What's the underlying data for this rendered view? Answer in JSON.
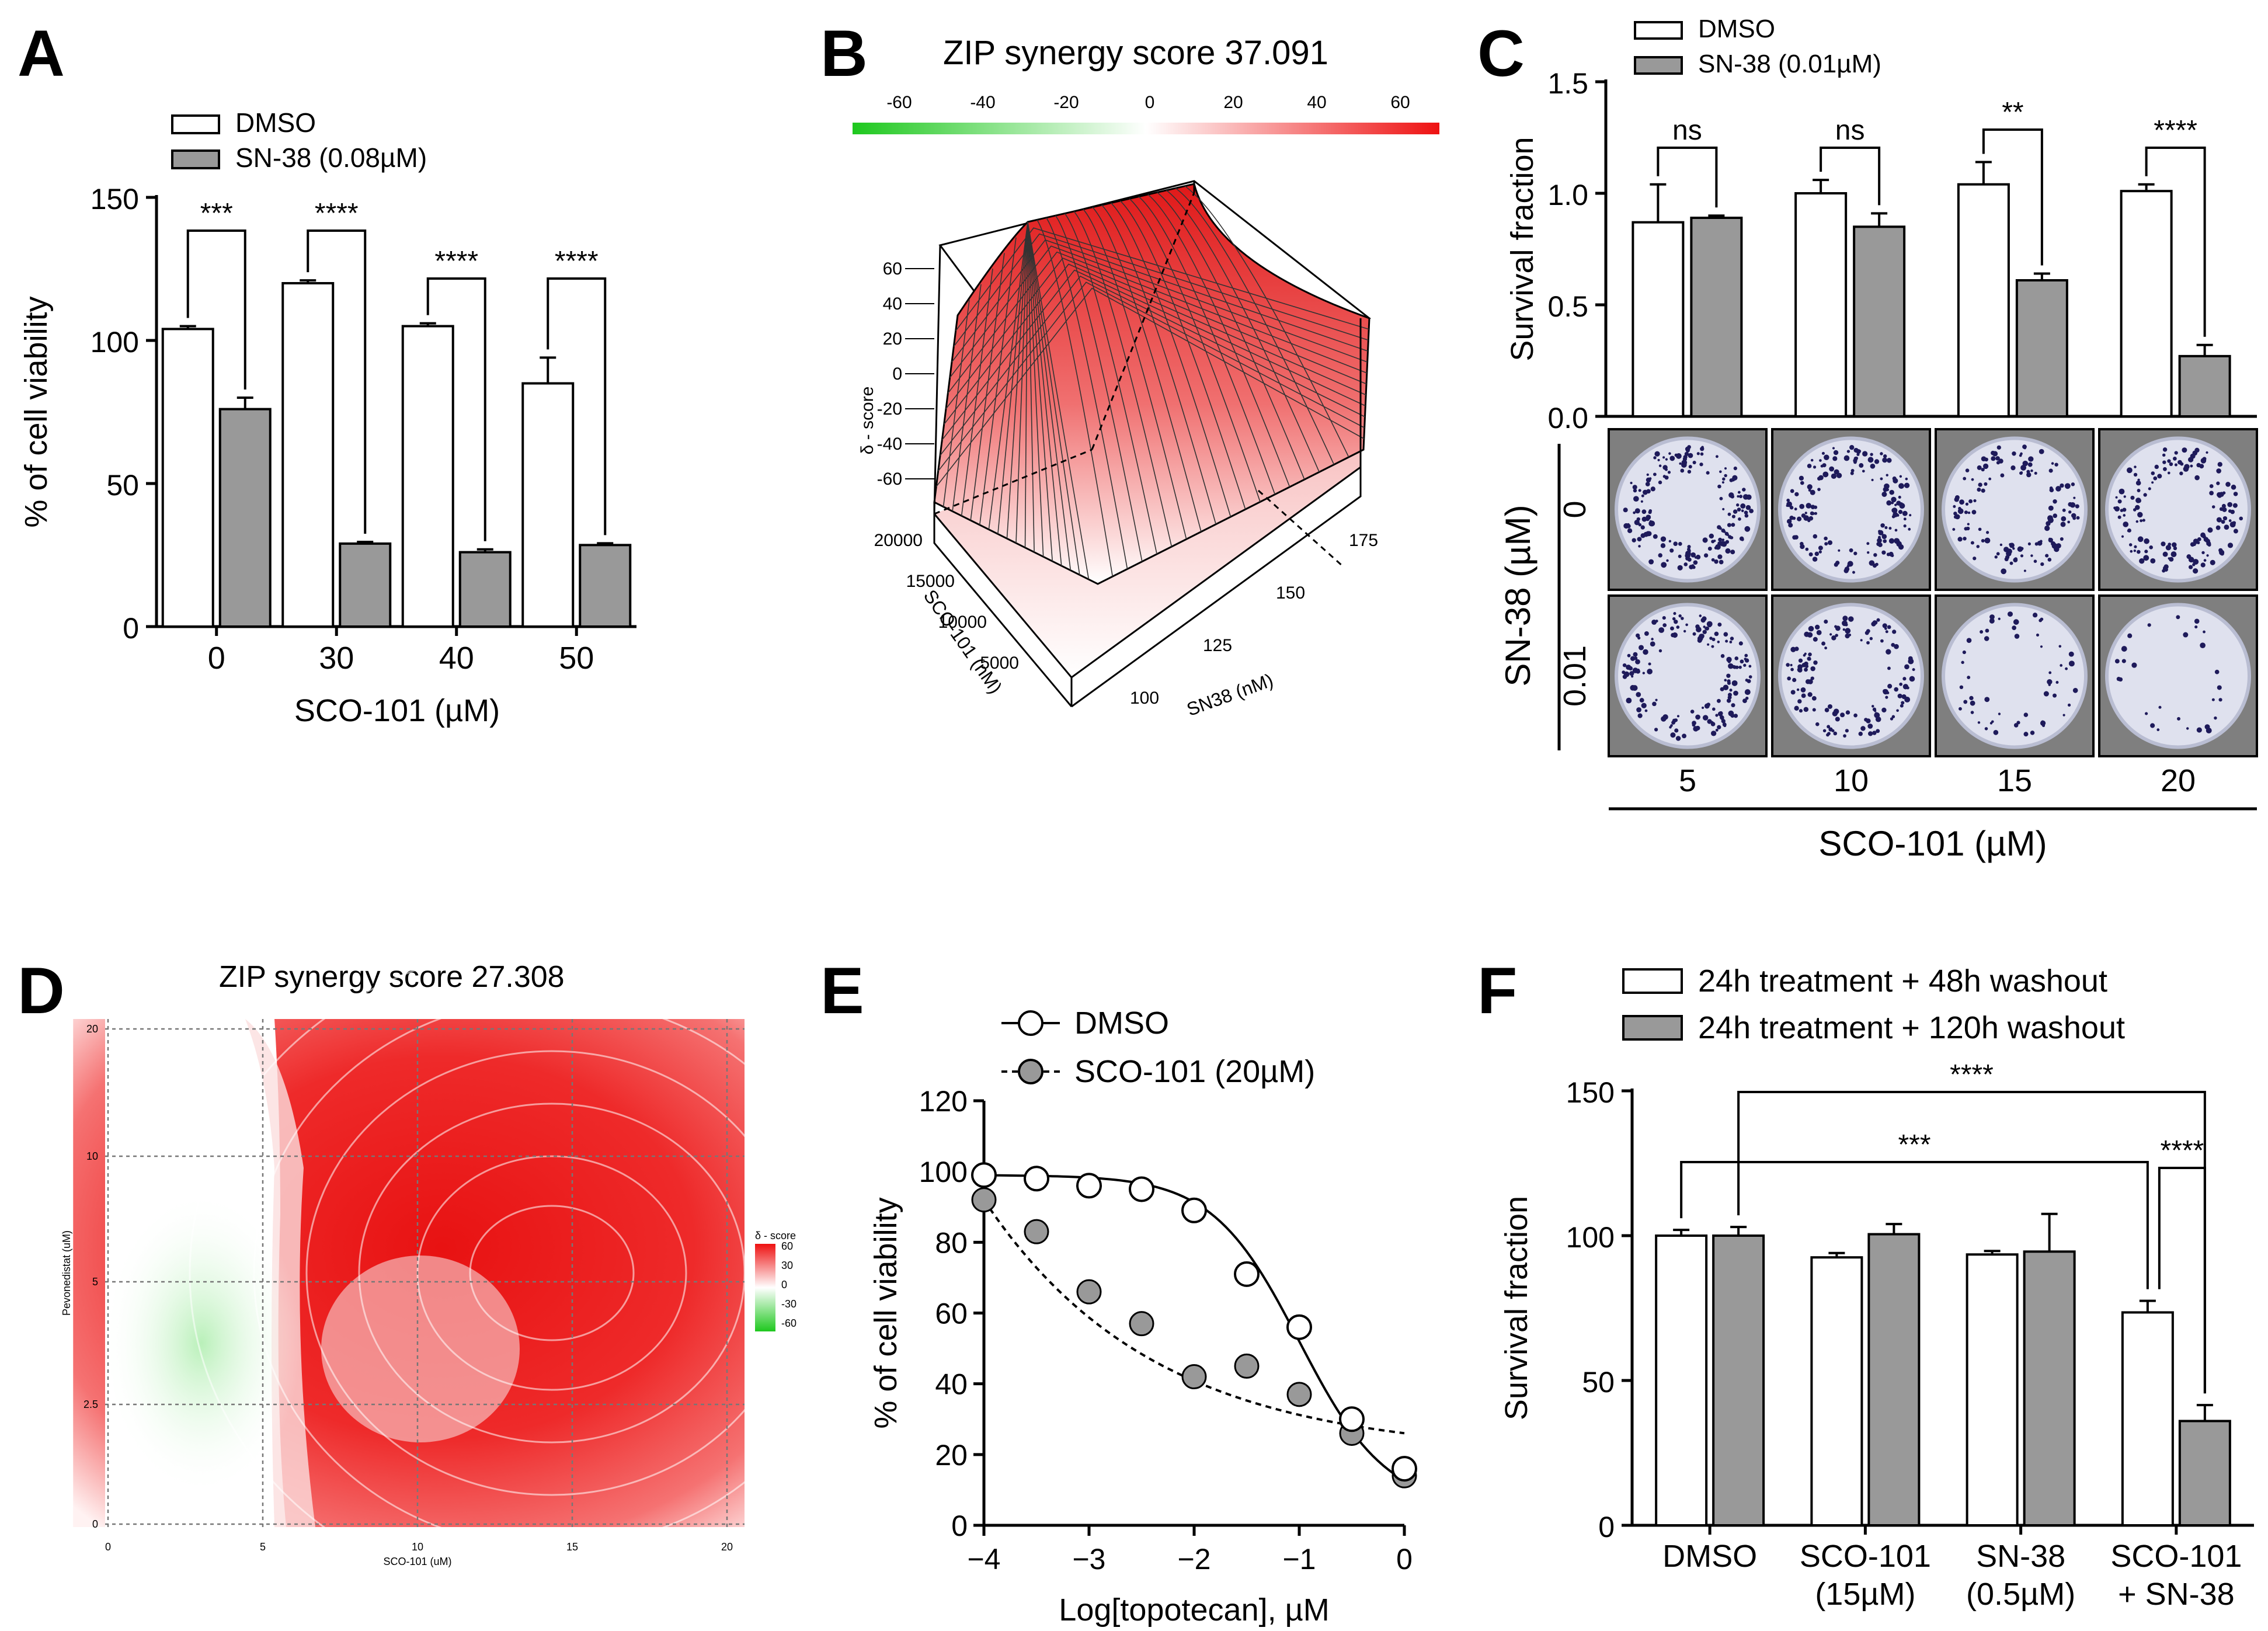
{
  "panels": {
    "A": {
      "letter": "A"
    },
    "B": {
      "letter": "B",
      "title": "ZIP synergy score 37.091"
    },
    "C": {
      "letter": "C"
    },
    "D": {
      "letter": "D",
      "title": "ZIP synergy score 27.308"
    },
    "E": {
      "letter": "E"
    },
    "F": {
      "letter": "F"
    }
  },
  "chart_data": [
    {
      "id": "A",
      "type": "bar",
      "categories": [
        "0",
        "30",
        "40",
        "50"
      ],
      "series": [
        {
          "name": "DMSO",
          "values": [
            104,
            120,
            105,
            85
          ],
          "errors": [
            1,
            1,
            1,
            9
          ],
          "color": "#ffffff"
        },
        {
          "name": "SN-38 (0.08µM)",
          "values": [
            76,
            29,
            26,
            28.5
          ],
          "errors": [
            4,
            0.6,
            1,
            0.6
          ],
          "color": "#999999"
        }
      ],
      "significance": [
        "***",
        "****",
        "****",
        "****"
      ],
      "xlabel": "SCO-101 (µM)",
      "ylabel": "% of cell viability",
      "ylim": [
        0,
        150
      ],
      "yticks": [
        "0",
        "50",
        "100",
        "150"
      ]
    },
    {
      "id": "B",
      "type": "surface",
      "title": "ZIP synergy score 37.091",
      "colorbar_ticks": [
        "-60",
        "-40",
        "-20",
        "0",
        "20",
        "40",
        "60"
      ],
      "zlabel": "δ - score",
      "zticks": [
        "60",
        "40",
        "20",
        "0",
        "-20",
        "-40",
        "-60"
      ],
      "x1label": "SCO-101 (nM)",
      "x1ticks": [
        "20000",
        "15000",
        "10000",
        "5000"
      ],
      "x2label": "SN38 (nM)",
      "x2ticks": [
        "100",
        "125",
        "150",
        "175"
      ]
    },
    {
      "id": "C",
      "type": "bar",
      "categories": [
        "5",
        "10",
        "15",
        "20"
      ],
      "series": [
        {
          "name": "DMSO",
          "values": [
            0.87,
            1.0,
            1.04,
            1.01
          ],
          "errors": [
            0.17,
            0.06,
            0.1,
            0.03
          ],
          "color": "#ffffff"
        },
        {
          "name": "SN-38 (0.01µM)",
          "values": [
            0.89,
            0.85,
            0.61,
            0.27
          ],
          "errors": [
            0.01,
            0.06,
            0.03,
            0.05
          ],
          "color": "#999999"
        }
      ],
      "significance": [
        "ns",
        "ns",
        "**",
        "****"
      ],
      "ylabel": "Survival fraction",
      "ylim": [
        0,
        1.5
      ],
      "yticks": [
        "0.0",
        "0.5",
        "1.0",
        "1.5"
      ],
      "image_rows": [
        "0",
        "0.01"
      ],
      "image_row_label": "SN-38 (µM)",
      "xlabel": "SCO-101 (µM)"
    },
    {
      "id": "D",
      "type": "heatmap",
      "title": "ZIP synergy score 27.308",
      "xlabel": "SCO-101 (uM)",
      "ylabel": "Pevonedistat (uM)",
      "xticks": [
        "0",
        "5",
        "10",
        "15",
        "20"
      ],
      "yticks": [
        "0",
        "2.5",
        "5",
        "10",
        "20"
      ],
      "legend_title": "δ - score",
      "legend_ticks": [
        "60",
        "30",
        "0",
        "-30",
        "-60"
      ]
    },
    {
      "id": "E",
      "type": "scatter",
      "series": [
        {
          "name": "DMSO",
          "x": [
            -4,
            -3.5,
            -3,
            -2.5,
            -2,
            -1.5,
            -1,
            -0.5,
            0
          ],
          "y": [
            99,
            98,
            96,
            95,
            89,
            71,
            56,
            30,
            16
          ],
          "marker": "open-circle",
          "line": "solid"
        },
        {
          "name": "SCO-101 (20µM)",
          "x": [
            -4,
            -3.5,
            -3,
            -2.5,
            -2,
            -1.5,
            -1,
            -0.5,
            0
          ],
          "y": [
            92,
            83,
            66,
            57,
            42,
            45,
            37,
            26,
            14
          ],
          "marker": "filled-circle",
          "line": "dashed"
        }
      ],
      "xlabel": "Log[topotecan], µM",
      "ylabel": "% of cell viability",
      "xlim": [
        -4,
        0
      ],
      "ylim": [
        0,
        120
      ],
      "xticks": [
        "−4",
        "−3",
        "−2",
        "−1",
        "0"
      ],
      "yticks": [
        "0",
        "20",
        "40",
        "60",
        "80",
        "100",
        "120"
      ]
    },
    {
      "id": "F",
      "type": "bar",
      "categories": [
        "DMSO",
        "SCO-101\n(15µM)",
        "SN-38\n(0.5µM)",
        "SCO-101\n+ SN-38"
      ],
      "series": [
        {
          "name": "24h treatment + 48h washout",
          "values": [
            100,
            92.5,
            93.5,
            73.5
          ],
          "errors": [
            2,
            1.5,
            1.2,
            4
          ],
          "color": "#ffffff"
        },
        {
          "name": "24h treatment + 120h washout",
          "values": [
            100,
            100.5,
            94.5,
            36
          ],
          "errors": [
            3,
            3.5,
            13,
            5.5
          ],
          "color": "#999999"
        }
      ],
      "significance": [
        {
          "label": "****",
          "from": "DMSO 120h",
          "to": "SCO-101 + SN-38 120h"
        },
        {
          "label": "***",
          "from": "DMSO 48h",
          "to": "SCO-101 + SN-38 48h"
        },
        {
          "label": "****",
          "from": "SCO-101 + SN-38 48h",
          "to": "SCO-101 + SN-38 120h"
        }
      ],
      "ylabel": "Survival fraction",
      "ylim": [
        0,
        150
      ],
      "yticks": [
        "0",
        "50",
        "100",
        "150"
      ]
    }
  ]
}
